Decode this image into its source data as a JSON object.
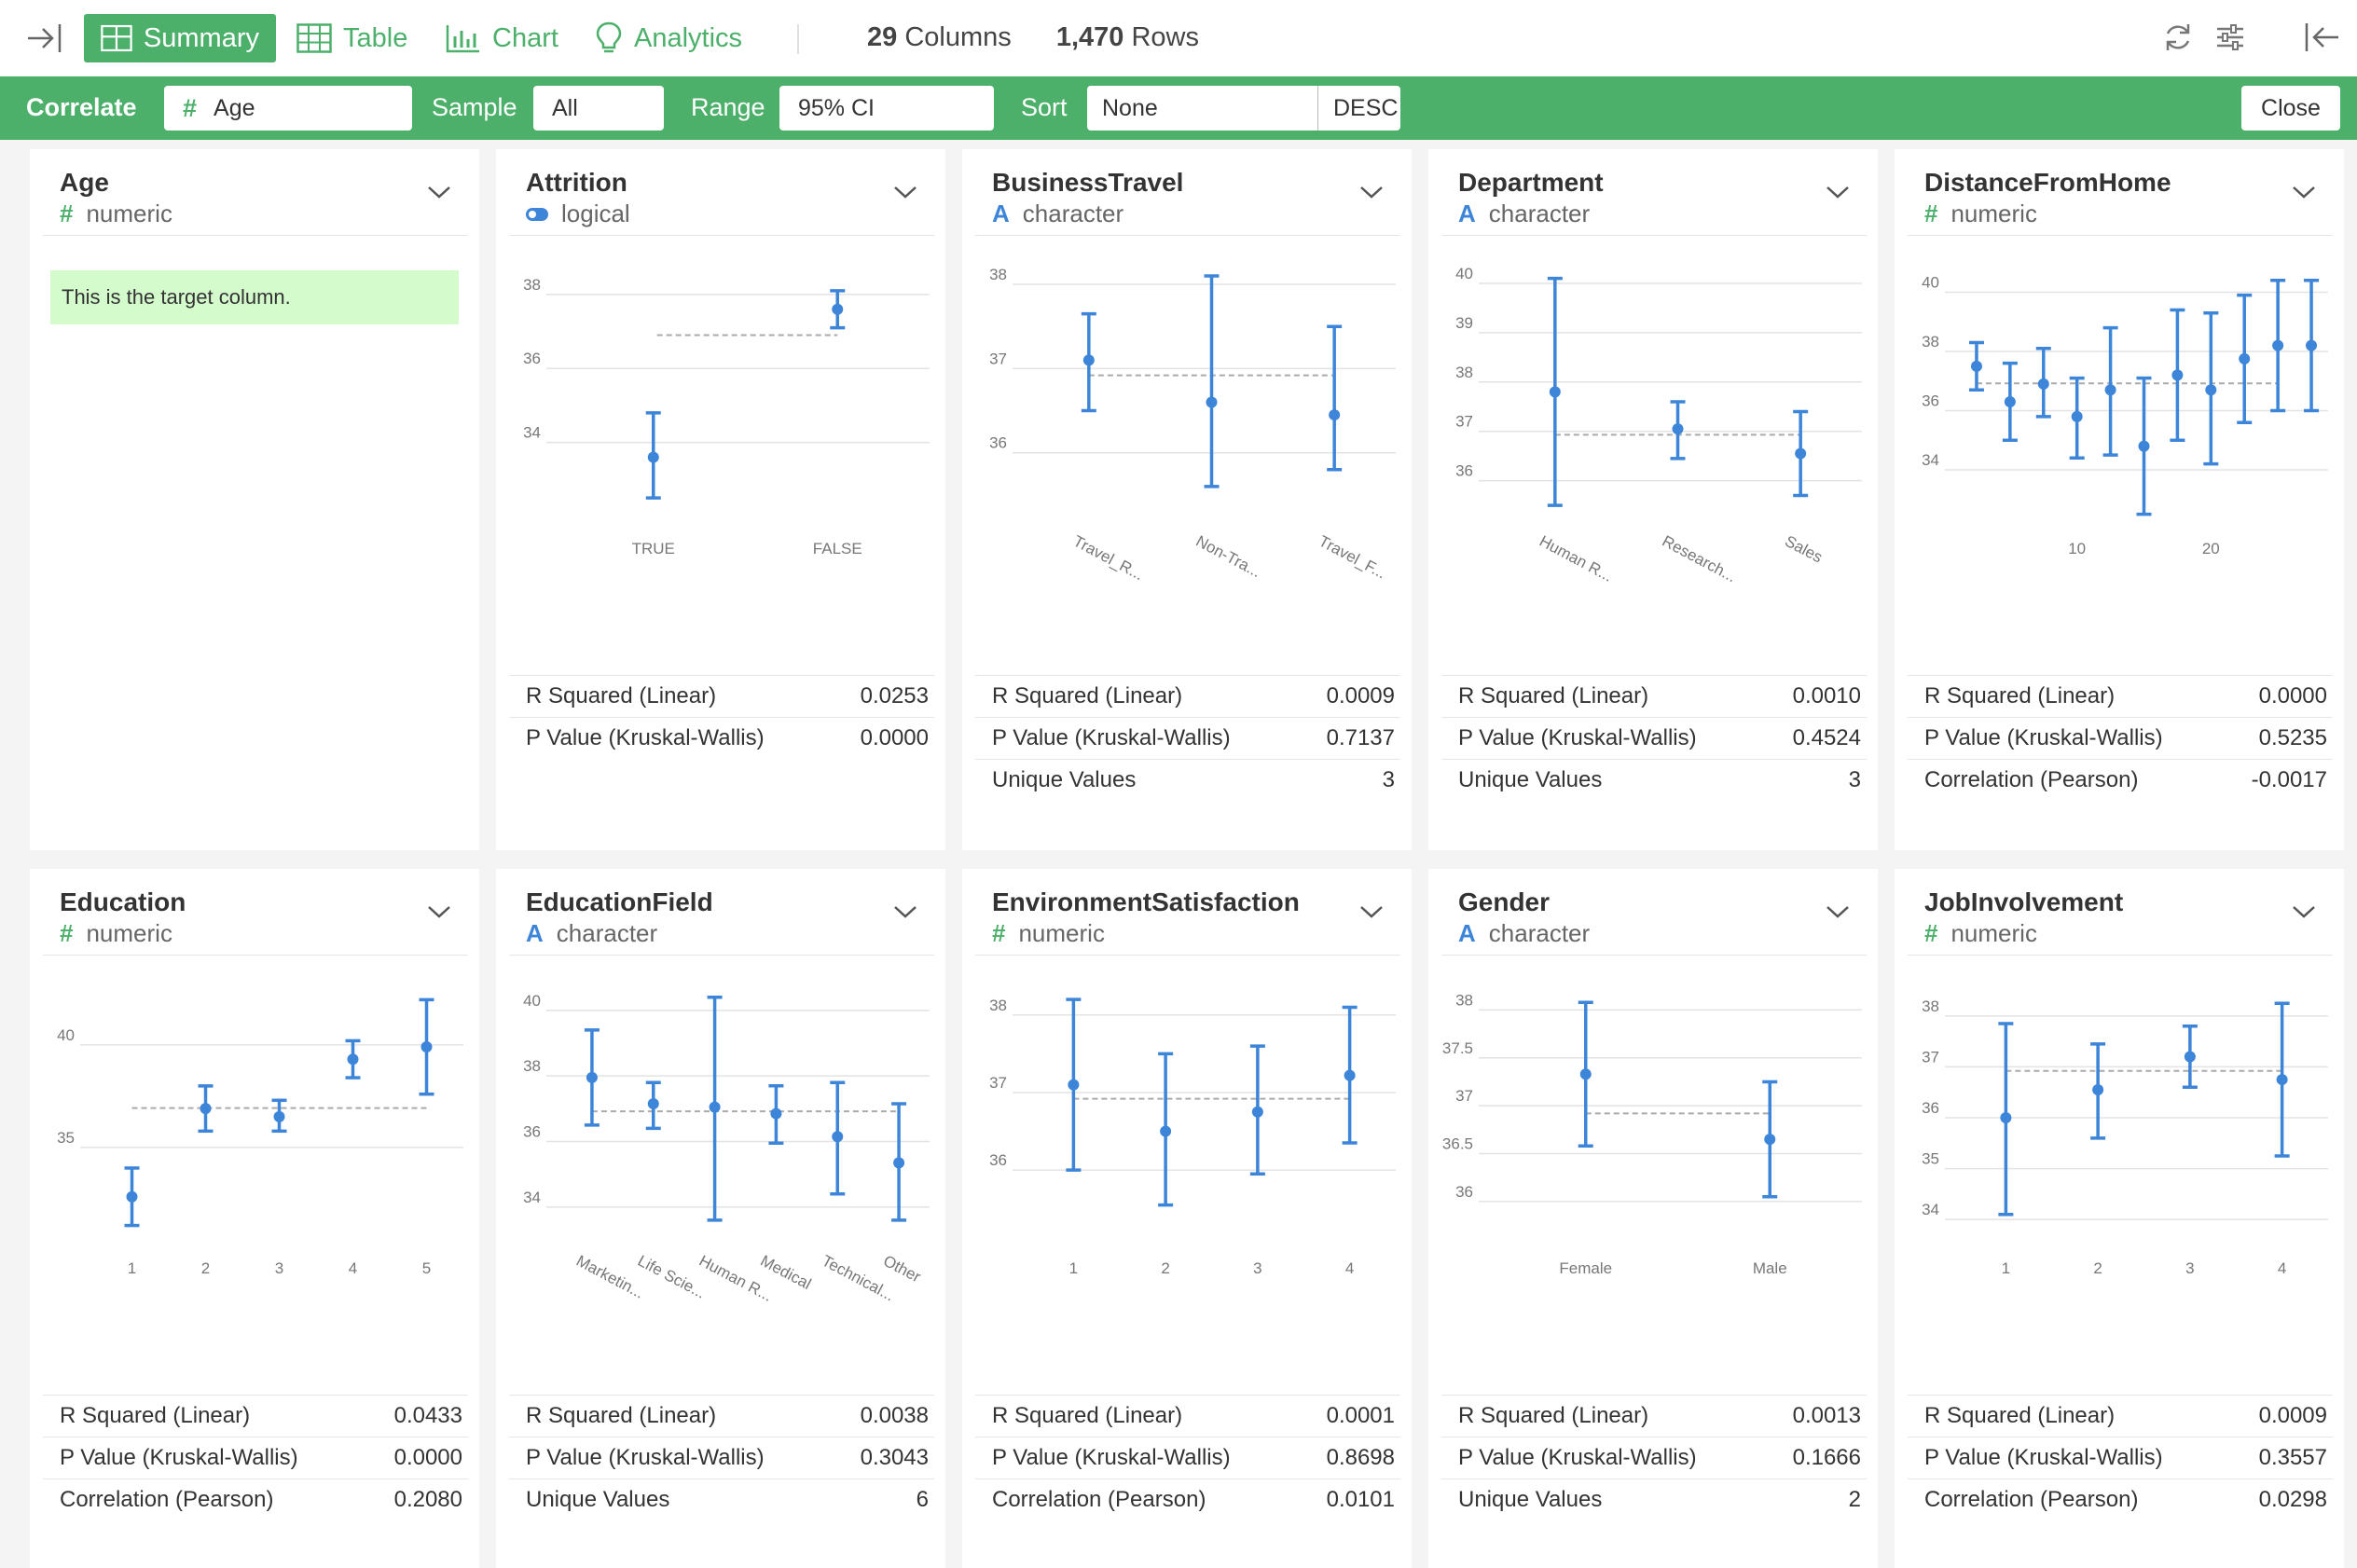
{
  "toolbar": {
    "summary": "Summary",
    "table": "Table",
    "chart": "Chart",
    "analytics": "Analytics",
    "columns_count": "29",
    "columns_label": "Columns",
    "rows_count": "1,470",
    "rows_label": "Rows"
  },
  "correlate": {
    "title": "Correlate",
    "target": "Age",
    "sample_label": "Sample",
    "sample_value": "All",
    "range_label": "Range",
    "range_value": "95% CI",
    "sort_label": "Sort",
    "sort_value": "None",
    "sort_order": "DESC",
    "close": "Close"
  },
  "colors": {
    "accent": "#4caf6a",
    "series": "#3d85d8",
    "note_bg": "#d4fbcc"
  },
  "cards": [
    {
      "name": "Age",
      "type": "numeric",
      "note": "This is the target column."
    },
    {
      "name": "Attrition",
      "type": "logical",
      "stats": [
        [
          "R Squared (Linear)",
          "0.0253"
        ],
        [
          "P Value (Kruskal-Wallis)",
          "0.0000"
        ]
      ]
    },
    {
      "name": "BusinessTravel",
      "type": "character",
      "stats": [
        [
          "R Squared (Linear)",
          "0.0009"
        ],
        [
          "P Value (Kruskal-Wallis)",
          "0.7137"
        ],
        [
          "Unique Values",
          "3"
        ]
      ]
    },
    {
      "name": "Department",
      "type": "character",
      "stats": [
        [
          "R Squared (Linear)",
          "0.0010"
        ],
        [
          "P Value (Kruskal-Wallis)",
          "0.4524"
        ],
        [
          "Unique Values",
          "3"
        ]
      ]
    },
    {
      "name": "DistanceFromHome",
      "type": "numeric",
      "stats": [
        [
          "R Squared (Linear)",
          "0.0000"
        ],
        [
          "P Value (Kruskal-Wallis)",
          "0.5235"
        ],
        [
          "Correlation (Pearson)",
          "-0.0017"
        ]
      ]
    },
    {
      "name": "Education",
      "type": "numeric",
      "stats": [
        [
          "R Squared (Linear)",
          "0.0433"
        ],
        [
          "P Value (Kruskal-Wallis)",
          "0.0000"
        ],
        [
          "Correlation (Pearson)",
          "0.2080"
        ]
      ]
    },
    {
      "name": "EducationField",
      "type": "character",
      "stats": [
        [
          "R Squared (Linear)",
          "0.0038"
        ],
        [
          "P Value (Kruskal-Wallis)",
          "0.3043"
        ],
        [
          "Unique Values",
          "6"
        ]
      ]
    },
    {
      "name": "EnvironmentSatisfaction",
      "type": "numeric",
      "stats": [
        [
          "R Squared (Linear)",
          "0.0001"
        ],
        [
          "P Value (Kruskal-Wallis)",
          "0.8698"
        ],
        [
          "Correlation (Pearson)",
          "0.0101"
        ]
      ]
    },
    {
      "name": "Gender",
      "type": "character",
      "stats": [
        [
          "R Squared (Linear)",
          "0.0013"
        ],
        [
          "P Value (Kruskal-Wallis)",
          "0.1666"
        ],
        [
          "Unique Values",
          "2"
        ]
      ]
    },
    {
      "name": "JobInvolvement",
      "type": "numeric",
      "stats": [
        [
          "R Squared (Linear)",
          "0.0009"
        ],
        [
          "P Value (Kruskal-Wallis)",
          "0.3557"
        ],
        [
          "Correlation (Pearson)",
          "0.0298"
        ]
      ]
    }
  ],
  "chart_data": [
    {
      "card": "Attrition",
      "type": "errorbar",
      "x_type": "category",
      "categories": [
        "TRUE",
        "FALSE"
      ],
      "mean": [
        33.6,
        37.6
      ],
      "lower": [
        32.5,
        37.1
      ],
      "upper": [
        34.8,
        38.1
      ],
      "ylim": [
        31.9,
        38.5
      ],
      "yticks": [
        34,
        36,
        38
      ],
      "reference": {
        "y": 36.9,
        "from": 1,
        "to": 1
      }
    },
    {
      "card": "BusinessTravel",
      "type": "errorbar",
      "x_type": "category",
      "categories": [
        "Travel_R...",
        "Non-Tra...",
        "Travel_F..."
      ],
      "category_labels_rotated": true,
      "mean": [
        37.1,
        36.6,
        36.45
      ],
      "lower": [
        36.5,
        35.6,
        35.8
      ],
      "upper": [
        37.65,
        38.1,
        37.5
      ],
      "ylim": [
        35.2,
        38.1
      ],
      "yticks": [
        36,
        37,
        38
      ],
      "reference": {
        "y": 36.92,
        "from": 0,
        "to": 2
      }
    },
    {
      "card": "Department",
      "type": "errorbar",
      "x_type": "category",
      "categories": [
        "Human R...",
        "Research...",
        "Sales"
      ],
      "category_labels_rotated": true,
      "mean": [
        37.8,
        37.05,
        36.55
      ],
      "lower": [
        35.5,
        36.45,
        35.7
      ],
      "upper": [
        40.1,
        37.6,
        37.4
      ],
      "ylim": [
        35.2,
        40.15
      ],
      "yticks": [
        36,
        37,
        38,
        39,
        40
      ],
      "reference": {
        "y": 36.93,
        "from": 0,
        "to": 2
      }
    },
    {
      "card": "DistanceFromHome",
      "type": "errorbar",
      "x_type": "numeric",
      "x": [
        1,
        2,
        3,
        4,
        5,
        6,
        7,
        8,
        9,
        10,
        11
      ],
      "xticks": [
        10,
        20
      ],
      "xtick_positions": [
        3,
        7
      ],
      "mean": [
        37.5,
        36.3,
        36.9,
        35.8,
        36.7,
        34.8,
        37.2,
        36.7,
        37.75,
        38.2,
        38.2
      ],
      "lower": [
        36.7,
        35.0,
        35.8,
        34.4,
        34.5,
        32.5,
        35.0,
        34.2,
        35.6,
        36.0,
        36.0
      ],
      "upper": [
        38.3,
        37.6,
        38.1,
        37.1,
        38.8,
        37.1,
        39.4,
        39.3,
        39.9,
        40.4,
        40.4
      ],
      "ylim": [
        32.3,
        40.55
      ],
      "yticks": [
        34,
        36,
        38,
        40
      ],
      "reference": {
        "y": 36.92,
        "from": 0,
        "to": 9
      }
    },
    {
      "card": "Education",
      "type": "errorbar",
      "x_type": "numeric",
      "categories": [
        "1",
        "2",
        "3",
        "4",
        "5"
      ],
      "mean": [
        32.6,
        36.9,
        36.5,
        39.3,
        39.9
      ],
      "lower": [
        31.2,
        35.8,
        35.8,
        38.4,
        37.6
      ],
      "upper": [
        34.0,
        38.0,
        37.3,
        40.2,
        42.2
      ],
      "ylim": [
        30.5,
        42.4
      ],
      "yticks": [
        35,
        40
      ],
      "reference": {
        "y": 36.92,
        "from": 0,
        "to": 4
      }
    },
    {
      "card": "EducationField",
      "type": "errorbar",
      "x_type": "category",
      "categories": [
        "Marketin...",
        "Life Scie...",
        "Human R...",
        "Medical",
        "Technical...",
        "Other"
      ],
      "category_labels_rotated": true,
      "mean": [
        37.95,
        37.15,
        37.05,
        36.85,
        36.15,
        35.35
      ],
      "lower": [
        36.5,
        36.4,
        33.6,
        35.95,
        34.4,
        33.6
      ],
      "upper": [
        39.4,
        37.8,
        40.4,
        37.7,
        37.8,
        37.15
      ],
      "ylim": [
        33.0,
        40.45
      ],
      "yticks": [
        34,
        36,
        38,
        40
      ],
      "reference": {
        "y": 36.92,
        "from": 0,
        "to": 5
      }
    },
    {
      "card": "EnvironmentSatisfaction",
      "type": "errorbar",
      "x_type": "numeric",
      "categories": [
        "1",
        "2",
        "3",
        "4"
      ],
      "mean": [
        37.1,
        36.5,
        36.75,
        37.22
      ],
      "lower": [
        36.0,
        35.55,
        35.95,
        36.35
      ],
      "upper": [
        38.2,
        37.5,
        37.6,
        38.1
      ],
      "ylim": [
        35.1,
        38.25
      ],
      "yticks": [
        36,
        37,
        38
      ],
      "reference": {
        "y": 36.92,
        "from": 0,
        "to": 3
      }
    },
    {
      "card": "Gender",
      "type": "errorbar",
      "x_type": "category",
      "categories": [
        "Female",
        "Male"
      ],
      "mean": [
        37.33,
        36.65
      ],
      "lower": [
        36.58,
        36.05
      ],
      "upper": [
        38.08,
        37.25
      ],
      "ylim": [
        35.6,
        38.15
      ],
      "yticks": [
        36,
        36.5,
        37,
        37.5,
        38
      ],
      "ytick_labels": [
        "36",
        "36.5",
        "37",
        "37.5",
        "38"
      ],
      "reference": {
        "y": 36.92,
        "from": 0,
        "to": 1
      }
    },
    {
      "card": "JobInvolvement",
      "type": "errorbar",
      "x_type": "numeric",
      "categories": [
        "1",
        "2",
        "3",
        "4"
      ],
      "mean": [
        36.0,
        36.55,
        37.2,
        36.75
      ],
      "lower": [
        34.1,
        35.6,
        36.6,
        35.25
      ],
      "upper": [
        37.85,
        37.45,
        37.8,
        38.25
      ],
      "ylim": [
        33.6,
        38.4
      ],
      "yticks": [
        34,
        35,
        36,
        37,
        38
      ],
      "reference": {
        "y": 36.92,
        "from": 0,
        "to": 3
      }
    }
  ]
}
